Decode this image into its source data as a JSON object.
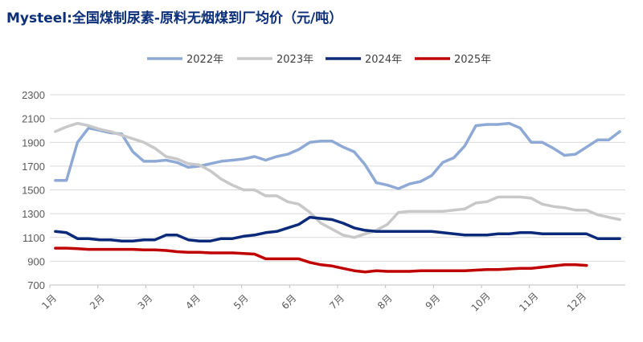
{
  "chart_data": {
    "type": "line",
    "title": "Mysteel:全国煤制尿素-原料无烟煤到厂均价（元/吨）",
    "xlabel": "",
    "ylabel": "",
    "ylim": [
      700,
      2300
    ],
    "yticks": [
      700,
      900,
      1100,
      1300,
      1500,
      1700,
      1900,
      2100,
      2300
    ],
    "xtick_labels": [
      "1月",
      "2月",
      "3月",
      "4月",
      "5月",
      "6月",
      "7月",
      "8月",
      "9月",
      "10月",
      "11月",
      "12月"
    ],
    "x_unit": "week of year (1–52)",
    "grid": "horizontal",
    "legend_position": "top",
    "series": [
      {
        "name": "2022年",
        "color": "#8ea9d6",
        "points": [
          [
            1,
            1580
          ],
          [
            2,
            1580
          ],
          [
            3,
            1900
          ],
          [
            4,
            2020
          ],
          [
            5,
            2000
          ],
          [
            6,
            1980
          ],
          [
            7,
            1970
          ],
          [
            8,
            1820
          ],
          [
            9,
            1740
          ],
          [
            10,
            1740
          ],
          [
            11,
            1750
          ],
          [
            12,
            1730
          ],
          [
            13,
            1690
          ],
          [
            14,
            1700
          ],
          [
            15,
            1720
          ],
          [
            16,
            1740
          ],
          [
            17,
            1750
          ],
          [
            18,
            1760
          ],
          [
            19,
            1780
          ],
          [
            20,
            1750
          ],
          [
            21,
            1780
          ],
          [
            22,
            1800
          ],
          [
            23,
            1840
          ],
          [
            24,
            1900
          ],
          [
            25,
            1910
          ],
          [
            26,
            1910
          ],
          [
            27,
            1860
          ],
          [
            28,
            1820
          ],
          [
            29,
            1710
          ],
          [
            30,
            1560
          ],
          [
            31,
            1540
          ],
          [
            32,
            1510
          ],
          [
            33,
            1550
          ],
          [
            34,
            1570
          ],
          [
            35,
            1620
          ],
          [
            36,
            1730
          ],
          [
            37,
            1770
          ],
          [
            38,
            1870
          ],
          [
            39,
            2040
          ],
          [
            40,
            2050
          ],
          [
            41,
            2050
          ],
          [
            42,
            2060
          ],
          [
            43,
            2020
          ],
          [
            44,
            1900
          ],
          [
            45,
            1900
          ],
          [
            46,
            1850
          ],
          [
            47,
            1790
          ],
          [
            48,
            1800
          ],
          [
            49,
            1860
          ],
          [
            50,
            1920
          ],
          [
            51,
            1920
          ],
          [
            52,
            1990
          ]
        ]
      },
      {
        "name": "2023年",
        "color": "#c8c8c8",
        "points": [
          [
            1,
            1990
          ],
          [
            2,
            2030
          ],
          [
            3,
            2060
          ],
          [
            4,
            2040
          ],
          [
            5,
            2010
          ],
          [
            6,
            1990
          ],
          [
            7,
            1960
          ],
          [
            8,
            1930
          ],
          [
            9,
            1900
          ],
          [
            10,
            1850
          ],
          [
            11,
            1780
          ],
          [
            12,
            1760
          ],
          [
            13,
            1720
          ],
          [
            14,
            1710
          ],
          [
            15,
            1660
          ],
          [
            16,
            1590
          ],
          [
            17,
            1540
          ],
          [
            18,
            1500
          ],
          [
            19,
            1500
          ],
          [
            20,
            1450
          ],
          [
            21,
            1450
          ],
          [
            22,
            1400
          ],
          [
            23,
            1380
          ],
          [
            24,
            1310
          ],
          [
            25,
            1220
          ],
          [
            26,
            1170
          ],
          [
            27,
            1120
          ],
          [
            28,
            1100
          ],
          [
            29,
            1130
          ],
          [
            30,
            1160
          ],
          [
            31,
            1210
          ],
          [
            32,
            1310
          ],
          [
            33,
            1320
          ],
          [
            34,
            1320
          ],
          [
            35,
            1320
          ],
          [
            36,
            1320
          ],
          [
            37,
            1330
          ],
          [
            38,
            1340
          ],
          [
            39,
            1390
          ],
          [
            40,
            1400
          ],
          [
            41,
            1440
          ],
          [
            42,
            1440
          ],
          [
            43,
            1440
          ],
          [
            44,
            1430
          ],
          [
            45,
            1380
          ],
          [
            46,
            1360
          ],
          [
            47,
            1350
          ],
          [
            48,
            1330
          ],
          [
            49,
            1330
          ],
          [
            50,
            1290
          ],
          [
            51,
            1270
          ],
          [
            52,
            1250
          ]
        ]
      },
      {
        "name": "2024年",
        "color": "#0b2a7a",
        "points": [
          [
            1,
            1150
          ],
          [
            2,
            1140
          ],
          [
            3,
            1090
          ],
          [
            4,
            1090
          ],
          [
            5,
            1080
          ],
          [
            6,
            1080
          ],
          [
            7,
            1070
          ],
          [
            8,
            1070
          ],
          [
            9,
            1080
          ],
          [
            10,
            1080
          ],
          [
            11,
            1120
          ],
          [
            12,
            1120
          ],
          [
            13,
            1080
          ],
          [
            14,
            1070
          ],
          [
            15,
            1070
          ],
          [
            16,
            1090
          ],
          [
            17,
            1090
          ],
          [
            18,
            1110
          ],
          [
            19,
            1120
          ],
          [
            20,
            1140
          ],
          [
            21,
            1150
          ],
          [
            22,
            1180
          ],
          [
            23,
            1210
          ],
          [
            24,
            1270
          ],
          [
            25,
            1260
          ],
          [
            26,
            1250
          ],
          [
            27,
            1220
          ],
          [
            28,
            1180
          ],
          [
            29,
            1160
          ],
          [
            30,
            1150
          ],
          [
            31,
            1150
          ],
          [
            32,
            1150
          ],
          [
            33,
            1150
          ],
          [
            34,
            1150
          ],
          [
            35,
            1150
          ],
          [
            36,
            1140
          ],
          [
            37,
            1130
          ],
          [
            38,
            1120
          ],
          [
            39,
            1120
          ],
          [
            40,
            1120
          ],
          [
            41,
            1130
          ],
          [
            42,
            1130
          ],
          [
            43,
            1140
          ],
          [
            44,
            1140
          ],
          [
            45,
            1130
          ],
          [
            46,
            1130
          ],
          [
            47,
            1130
          ],
          [
            48,
            1130
          ],
          [
            49,
            1130
          ],
          [
            50,
            1090
          ],
          [
            51,
            1090
          ],
          [
            52,
            1090
          ]
        ]
      },
      {
        "name": "2025年",
        "color": "#c00000",
        "points": [
          [
            1,
            1010
          ],
          [
            2,
            1010
          ],
          [
            3,
            1005
          ],
          [
            4,
            1000
          ],
          [
            5,
            1000
          ],
          [
            6,
            1000
          ],
          [
            7,
            1000
          ],
          [
            8,
            1000
          ],
          [
            9,
            995
          ],
          [
            10,
            995
          ],
          [
            11,
            990
          ],
          [
            12,
            980
          ],
          [
            13,
            975
          ],
          [
            14,
            975
          ],
          [
            15,
            970
          ],
          [
            16,
            970
          ],
          [
            17,
            970
          ],
          [
            18,
            965
          ],
          [
            19,
            960
          ],
          [
            20,
            920
          ],
          [
            21,
            920
          ],
          [
            22,
            920
          ],
          [
            23,
            920
          ],
          [
            24,
            890
          ],
          [
            25,
            870
          ],
          [
            26,
            860
          ],
          [
            27,
            840
          ],
          [
            28,
            820
          ],
          [
            29,
            810
          ],
          [
            30,
            820
          ],
          [
            31,
            815
          ],
          [
            32,
            815
          ],
          [
            33,
            815
          ],
          [
            34,
            820
          ],
          [
            35,
            820
          ],
          [
            36,
            820
          ],
          [
            37,
            820
          ],
          [
            38,
            820
          ],
          [
            39,
            825
          ],
          [
            40,
            830
          ],
          [
            41,
            830
          ],
          [
            42,
            835
          ],
          [
            43,
            840
          ],
          [
            44,
            840
          ],
          [
            45,
            850
          ],
          [
            46,
            860
          ],
          [
            47,
            870
          ],
          [
            48,
            870
          ],
          [
            49,
            865
          ]
        ]
      }
    ]
  }
}
